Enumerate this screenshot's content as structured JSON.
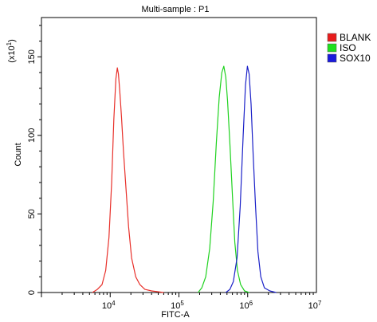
{
  "chart_data": {
    "type": "line",
    "title": "Multi-sample : P1",
    "xlabel": "FITC-A",
    "ylabel": "Count",
    "y_multiplier_label": "(x10",
    "y_multiplier_exp": "1",
    "x_scale": "log",
    "xlim": [
      1000,
      10000000
    ],
    "ylim": [
      0,
      175
    ],
    "x_ticks": [
      {
        "value": 10000,
        "base": "10",
        "exp": "4"
      },
      {
        "value": 100000,
        "base": "10",
        "exp": "5"
      },
      {
        "value": 1000000,
        "base": "10",
        "exp": "6"
      },
      {
        "value": 10000000,
        "base": "10",
        "exp": "7"
      }
    ],
    "y_ticks": [
      0,
      50,
      100,
      150
    ],
    "legend_position": "top-right",
    "series": [
      {
        "name": "BLANK",
        "color": "#e8302a",
        "swatch": "#e81c1c",
        "points": [
          [
            5500,
            0
          ],
          [
            6500,
            2
          ],
          [
            7600,
            5
          ],
          [
            8600,
            14
          ],
          [
            9600,
            35
          ],
          [
            10500,
            70
          ],
          [
            11300,
            110
          ],
          [
            12100,
            136
          ],
          [
            12700,
            143
          ],
          [
            13200,
            139
          ],
          [
            13800,
            128
          ],
          [
            14600,
            112
          ],
          [
            15600,
            90
          ],
          [
            17000,
            66
          ],
          [
            18500,
            42
          ],
          [
            20500,
            22
          ],
          [
            23500,
            10
          ],
          [
            27000,
            5
          ],
          [
            32000,
            2
          ],
          [
            40000,
            1
          ],
          [
            60000,
            0
          ]
        ]
      },
      {
        "name": "ISO",
        "color": "#1fd21f",
        "swatch": "#1ee01e",
        "points": [
          [
            190000,
            0
          ],
          [
            215000,
            3
          ],
          [
            245000,
            10
          ],
          [
            280000,
            28
          ],
          [
            315000,
            58
          ],
          [
            350000,
            95
          ],
          [
            385000,
            124
          ],
          [
            420000,
            140
          ],
          [
            450000,
            144
          ],
          [
            480000,
            137
          ],
          [
            510000,
            122
          ],
          [
            550000,
            95
          ],
          [
            600000,
            62
          ],
          [
            650000,
            32
          ],
          [
            710000,
            14
          ],
          [
            790000,
            5
          ],
          [
            900000,
            1
          ],
          [
            1050000,
            0
          ]
        ]
      },
      {
        "name": "SOX10",
        "color": "#1a20c8",
        "swatch": "#1a1adc",
        "points": [
          [
            480000,
            0
          ],
          [
            550000,
            2
          ],
          [
            620000,
            7
          ],
          [
            700000,
            22
          ],
          [
            780000,
            55
          ],
          [
            860000,
            100
          ],
          [
            930000,
            132
          ],
          [
            990000,
            144
          ],
          [
            1050000,
            139
          ],
          [
            1120000,
            120
          ],
          [
            1200000,
            88
          ],
          [
            1300000,
            55
          ],
          [
            1410000,
            26
          ],
          [
            1550000,
            10
          ],
          [
            1750000,
            3
          ],
          [
            2100000,
            1
          ],
          [
            2600000,
            0
          ]
        ]
      }
    ]
  }
}
